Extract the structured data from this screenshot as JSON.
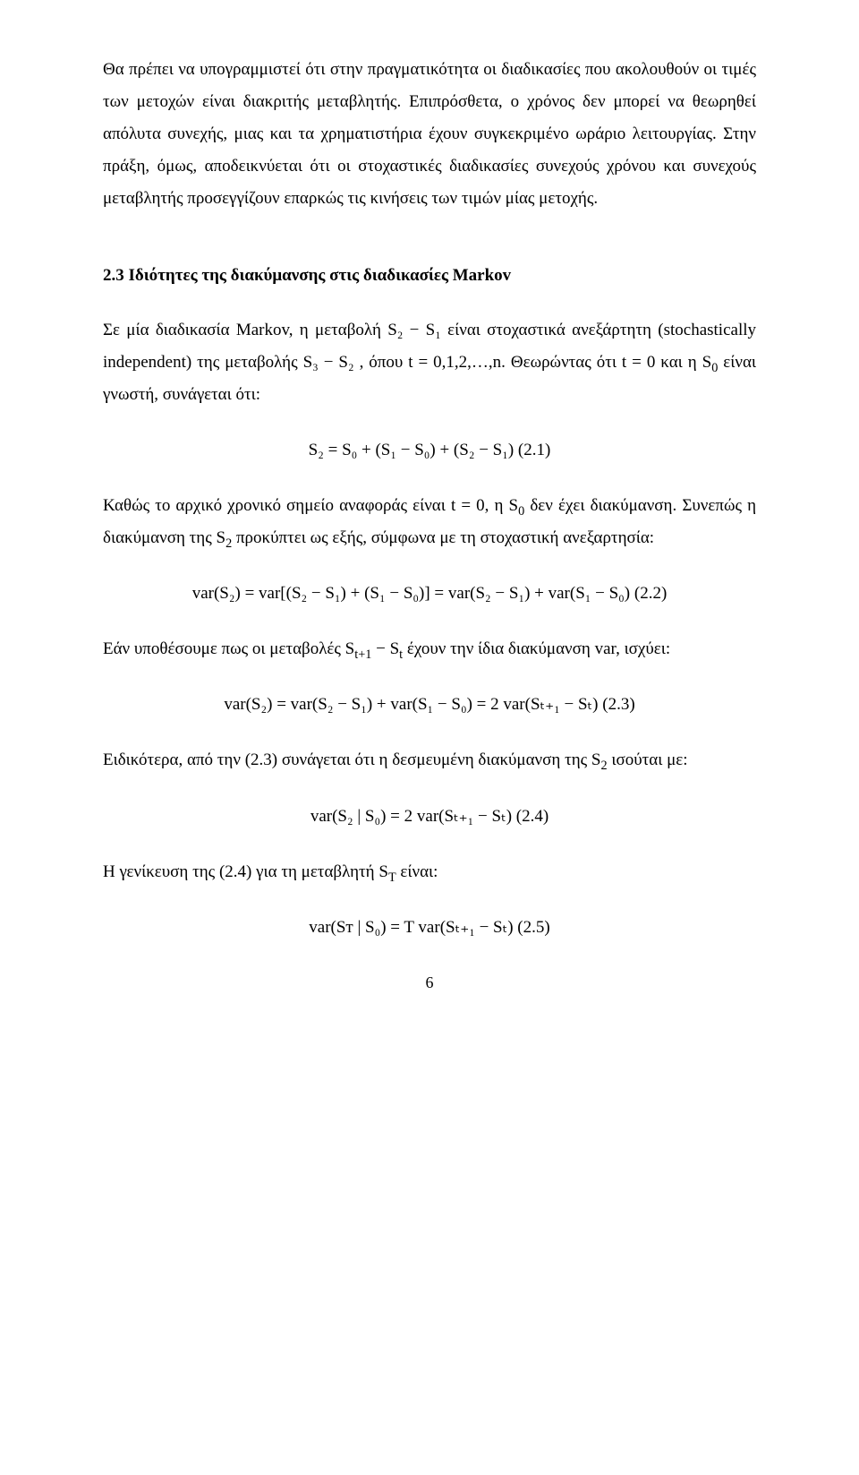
{
  "para1": "Θα πρέπει να υπογραμμιστεί ότι στην πραγματικότητα οι διαδικασίες που ακολουθούν οι τιμές των μετοχών είναι διακριτής μεταβλητής. Επιπρόσθετα, ο χρόνος δεν μπορεί να θεωρηθεί απόλυτα συνεχής, μιας και τα χρηματιστήρια έχουν συγκεκριμένο ωράριο λειτουργίας. Στην πράξη, όμως, αποδεικνύεται ότι οι στοχαστικές διαδικασίες συνεχούς χρόνου και συνεχούς μεταβλητής προσεγγίζουν επαρκώς τις κινήσεις των τιμών μίας μετοχής.",
  "heading": "2.3 Ιδιότητες της διακύμανσης στις διαδικασίες Markov",
  "para2_a": "Σε μία διαδικασία Markov, η μεταβολή ",
  "para2_b": " είναι στοχαστικά ανεξάρτητη (stochastically independent) της μεταβολής ",
  "para2_c": ", όπου t = 0,1,2,…,n. Θεωρώντας ότι t = 0 και η S",
  "para2_d": " είναι γνωστή, συνάγεται ότι:",
  "eq1": "S₂ = S₀ + (S₁ − S₀) + (S₂ − S₁)  (2.1)",
  "para3_a": "Καθώς το αρχικό χρονικό σημείο αναφοράς είναι t = 0, η S",
  "para3_b": " δεν έχει διακύμανση. Συνεπώς η διακύμανση της S",
  "para3_c": " προκύπτει ως εξής, σύμφωνα με τη στοχαστική ανεξαρτησία:",
  "eq2": "var(S₂) = var[(S₂ − S₁) + (S₁ − S₀)] = var(S₂ − S₁) + var(S₁ − S₀)  (2.2)",
  "para4_a": "Εάν υποθέσουμε πως οι μεταβολές S",
  "para4_b": " − S",
  "para4_c": " έχουν την ίδια διακύμανση var, ισχύει:",
  "eq3": "var(S₂) = var(S₂ − S₁) + var(S₁ − S₀) = 2 var(Sₜ₊₁ − Sₜ)  (2.3)",
  "para5_a": "Ειδικότερα, από την (2.3) συνάγεται ότι η δεσμευμένη διακύμανση της S",
  "para5_b": " ισούται με:",
  "eq4": "var(S₂ | S₀) = 2 var(Sₜ₊₁ − Sₜ)  (2.4)",
  "para6_a": "Η γενίκευση της (2.4) για τη μεταβλητή S",
  "para6_b": " είναι:",
  "eq5": "var(Sᴛ | S₀) = T var(Sₜ₊₁ − Sₜ)  (2.5)",
  "pagenum": "6",
  "labels": {
    "s2": "S₂",
    "s1": "S₁",
    "s3": "S₃",
    "sub0": "0",
    "sub2": "2",
    "subt1": "t+1",
    "subt": "t",
    "subT": "T"
  }
}
